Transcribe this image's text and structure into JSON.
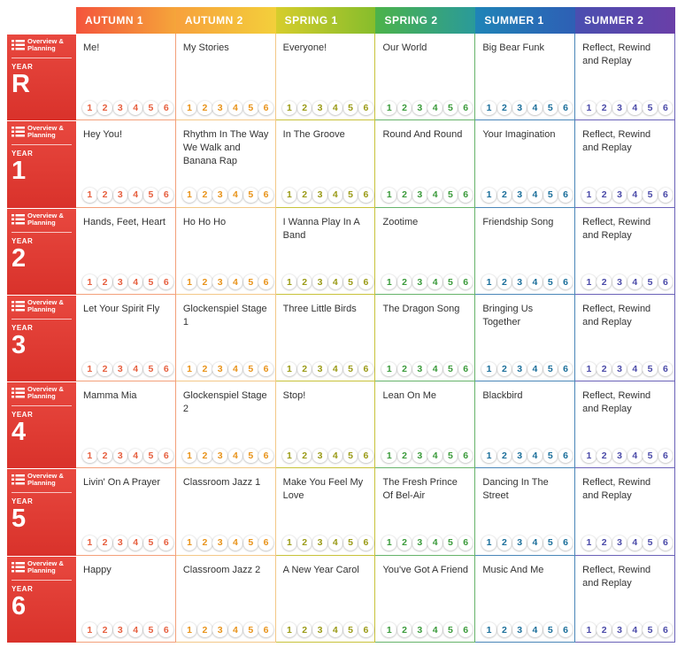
{
  "terms": [
    {
      "label": "AUTUMN 1",
      "gradient": [
        "#f4543c",
        "#f5a53a"
      ],
      "border": "#f3a07a",
      "step_color": "#e65f3e"
    },
    {
      "label": "AUTUMN 2",
      "gradient": [
        "#f7a13c",
        "#f3cf3b"
      ],
      "border": "#f3c888",
      "step_color": "#e8931a"
    },
    {
      "label": "SPRING 1",
      "gradient": [
        "#d6cd2c",
        "#86bd2c"
      ],
      "border": "#c8c23a",
      "step_color": "#9a9a16"
    },
    {
      "label": "SPRING 2",
      "gradient": [
        "#4cb34a",
        "#2a9a9a"
      ],
      "border": "#66b36a",
      "step_color": "#3a9a3a"
    },
    {
      "label": "SUMMER 1",
      "gradient": [
        "#1f84b7",
        "#2e5fb5"
      ],
      "border": "#4a86b8",
      "step_color": "#1a6e9a"
    },
    {
      "label": "SUMMER 2",
      "gradient": [
        "#4a4fb0",
        "#6a3fa8"
      ],
      "border": "#6a62b8",
      "step_color": "#4a4aa8"
    }
  ],
  "overview_label_line1": "Overview &",
  "overview_label_line2": "Planning",
  "year_word": "YEAR",
  "step_labels": [
    "1",
    "2",
    "3",
    "4",
    "5",
    "6"
  ],
  "years": [
    {
      "year": "R",
      "units": [
        "Me!",
        "My Stories",
        "Everyone!",
        "Our World",
        "Big Bear Funk",
        "Reflect, Rewind and Replay"
      ]
    },
    {
      "year": "1",
      "units": [
        "Hey You!",
        "Rhythm In The Way We Walk and Banana Rap",
        "In The Groove",
        "Round And Round",
        "Your Imagination",
        "Reflect, Rewind and Replay"
      ]
    },
    {
      "year": "2",
      "units": [
        "Hands, Feet, Heart",
        "Ho Ho Ho",
        "I Wanna Play In A Band",
        "Zootime",
        "Friendship Song",
        "Reflect, Rewind and Replay"
      ]
    },
    {
      "year": "3",
      "units": [
        "Let Your Spirit Fly",
        "Glockenspiel Stage 1",
        "Three Little Birds",
        "The Dragon Song",
        "Bringing Us Together",
        "Reflect, Rewind and Replay"
      ]
    },
    {
      "year": "4",
      "units": [
        "Mamma Mia",
        "Glockenspiel Stage 2",
        "Stop!",
        "Lean On Me",
        "Blackbird",
        "Reflect, Rewind and Replay"
      ]
    },
    {
      "year": "5",
      "units": [
        "Livin' On A Prayer",
        "Classroom Jazz 1",
        "Make You Feel My Love",
        "The Fresh Prince Of Bel-Air",
        "Dancing In The Street",
        "Reflect, Rewind and Replay"
      ]
    },
    {
      "year": "6",
      "units": [
        "Happy",
        "Classroom Jazz 2",
        "A New Year Carol",
        "You've Got A Friend",
        "Music And Me",
        "Reflect, Rewind and Replay"
      ]
    }
  ]
}
